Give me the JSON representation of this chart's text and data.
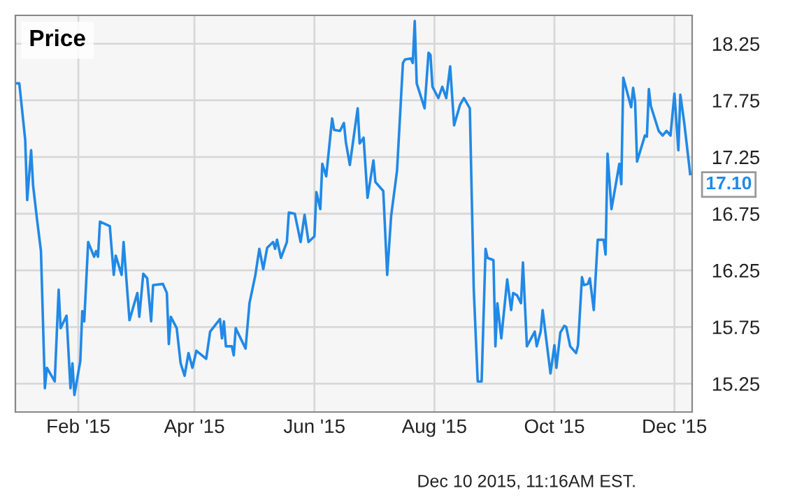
{
  "chart_data": {
    "type": "line",
    "title": "Price",
    "x": [
      "2015-01-01",
      "2015-01-02",
      "2015-01-05",
      "2015-01-06",
      "2015-01-08",
      "2015-01-09",
      "2015-01-11",
      "2015-01-13",
      "2015-01-15",
      "2015-01-16",
      "2015-01-20",
      "2015-01-22",
      "2015-01-23",
      "2015-01-26",
      "2015-01-28",
      "2015-01-29",
      "2015-01-30",
      "2015-02-02",
      "2015-02-03",
      "2015-02-04",
      "2015-02-06",
      "2015-02-09",
      "2015-02-10",
      "2015-02-11",
      "2015-02-12",
      "2015-02-17",
      "2015-02-19",
      "2015-02-20",
      "2015-02-23",
      "2015-02-24",
      "2015-02-27",
      "2015-03-03",
      "2015-03-04",
      "2015-03-06",
      "2015-03-08",
      "2015-03-10",
      "2015-03-11",
      "2015-03-16",
      "2015-03-18",
      "2015-03-19",
      "2015-03-20",
      "2015-03-23",
      "2015-03-25",
      "2015-03-27",
      "2015-03-29",
      "2015-03-31",
      "2015-04-02",
      "2015-04-07",
      "2015-04-09",
      "2015-04-14",
      "2015-04-15",
      "2015-04-16",
      "2015-04-17",
      "2015-04-20",
      "2015-04-21",
      "2015-04-22",
      "2015-04-27",
      "2015-04-29",
      "2015-05-02",
      "2015-05-04",
      "2015-05-06",
      "2015-05-08",
      "2015-05-11",
      "2015-05-12",
      "2015-05-13",
      "2015-05-15",
      "2015-05-18",
      "2015-05-19",
      "2015-05-22",
      "2015-05-25",
      "2015-05-27",
      "2015-05-29",
      "2015-06-01",
      "2015-06-02",
      "2015-06-04",
      "2015-06-05",
      "2015-06-07",
      "2015-06-10",
      "2015-06-11",
      "2015-06-14",
      "2015-06-16",
      "2015-06-17",
      "2015-06-19",
      "2015-06-23",
      "2015-06-24",
      "2015-06-26",
      "2015-06-28",
      "2015-07-01",
      "2015-07-02",
      "2015-07-06",
      "2015-07-08",
      "2015-07-10",
      "2015-07-13",
      "2015-07-16",
      "2015-07-17",
      "2015-07-20",
      "2015-07-21",
      "2015-07-22",
      "2015-07-23",
      "2015-07-27",
      "2015-07-29",
      "2015-07-30",
      "2015-07-31",
      "2015-08-03",
      "2015-08-05",
      "2015-08-07",
      "2015-08-09",
      "2015-08-11",
      "2015-08-14",
      "2015-08-16",
      "2015-08-19",
      "2015-08-21",
      "2015-08-23",
      "2015-08-25",
      "2015-08-27",
      "2015-08-28",
      "2015-08-31",
      "2015-09-01",
      "2015-09-02",
      "2015-09-04",
      "2015-09-07",
      "2015-09-09",
      "2015-09-10",
      "2015-09-12",
      "2015-09-14",
      "2015-09-15",
      "2015-09-17",
      "2015-09-21",
      "2015-09-22",
      "2015-09-24",
      "2015-09-25",
      "2015-09-29",
      "2015-10-01",
      "2015-10-02",
      "2015-10-04",
      "2015-10-06",
      "2015-10-07",
      "2015-10-09",
      "2015-10-12",
      "2015-10-13",
      "2015-10-15",
      "2015-10-16",
      "2015-10-18",
      "2015-10-19",
      "2015-10-21",
      "2015-10-23",
      "2015-10-26",
      "2015-10-27",
      "2015-10-28",
      "2015-10-30",
      "2015-11-03",
      "2015-11-04",
      "2015-11-05",
      "2015-11-09",
      "2015-11-10",
      "2015-11-11",
      "2015-11-12",
      "2015-11-16",
      "2015-11-17",
      "2015-11-18",
      "2015-11-19",
      "2015-11-23",
      "2015-11-25",
      "2015-11-27",
      "2015-11-29",
      "2015-12-01",
      "2015-12-03",
      "2015-12-04",
      "2015-12-06",
      "2015-12-09"
    ],
    "series": [
      {
        "color": "#2189e6",
        "values": [
          17.9,
          17.9,
          17.4,
          16.87,
          17.31,
          17.0,
          16.7,
          16.42,
          15.21,
          15.39,
          15.27,
          16.08,
          15.74,
          15.85,
          15.21,
          15.43,
          15.15,
          15.45,
          15.89,
          15.8,
          16.5,
          16.37,
          16.42,
          16.37,
          16.68,
          16.64,
          16.21,
          16.38,
          16.21,
          16.5,
          15.81,
          16.05,
          15.84,
          16.22,
          16.18,
          15.8,
          16.12,
          16.13,
          16.05,
          15.6,
          15.84,
          15.74,
          15.43,
          15.32,
          15.52,
          15.39,
          15.54,
          15.47,
          15.71,
          15.82,
          15.65,
          15.8,
          15.58,
          15.58,
          15.5,
          15.74,
          15.56,
          15.96,
          16.21,
          16.44,
          16.26,
          16.45,
          16.5,
          16.44,
          16.52,
          16.36,
          16.5,
          16.76,
          16.75,
          16.5,
          16.74,
          16.5,
          16.55,
          16.94,
          16.79,
          17.19,
          17.08,
          17.59,
          17.49,
          17.48,
          17.55,
          17.38,
          17.18,
          17.68,
          17.37,
          17.42,
          16.89,
          17.22,
          17.03,
          16.95,
          16.21,
          16.73,
          17.13,
          18.08,
          18.11,
          18.12,
          18.08,
          18.45,
          17.9,
          17.68,
          18.17,
          18.15,
          17.87,
          17.77,
          17.87,
          17.77,
          18.05,
          17.53,
          17.71,
          17.77,
          17.68,
          16.08,
          15.27,
          15.27,
          16.44,
          16.36,
          16.34,
          15.58,
          15.96,
          15.65,
          16.17,
          15.9,
          16.05,
          16.03,
          15.96,
          16.32,
          15.58,
          15.71,
          15.58,
          15.71,
          15.9,
          15.34,
          15.59,
          15.39,
          15.7,
          15.76,
          15.75,
          15.58,
          15.52,
          15.59,
          16.19,
          16.12,
          16.13,
          16.18,
          15.9,
          16.52,
          16.52,
          16.39,
          17.28,
          16.79,
          17.19,
          17.01,
          17.95,
          17.69,
          17.86,
          17.74,
          17.21,
          17.44,
          17.43,
          17.85,
          17.7,
          17.48,
          17.44,
          17.48,
          17.44,
          17.81,
          17.31,
          17.8,
          17.55,
          17.1
        ]
      }
    ],
    "xlim": [
      "2014-12-31",
      "2015-12-10"
    ],
    "xticks": [
      {
        "value": "2015-02-01",
        "label": "Feb '15"
      },
      {
        "value": "2015-04-01",
        "label": "Apr '15"
      },
      {
        "value": "2015-06-01",
        "label": "Jun '15"
      },
      {
        "value": "2015-08-01",
        "label": "Aug '15"
      },
      {
        "value": "2015-10-01",
        "label": "Oct '15"
      },
      {
        "value": "2015-12-01",
        "label": "Dec '15"
      }
    ],
    "ylim": [
      15.0,
      18.5
    ],
    "yticks": [
      {
        "value": 15.25,
        "label": "15.25"
      },
      {
        "value": 15.75,
        "label": "15.75"
      },
      {
        "value": 16.25,
        "label": "16.25"
      },
      {
        "value": 16.75,
        "label": "16.75"
      },
      {
        "value": 17.25,
        "label": "17.25"
      },
      {
        "value": 17.75,
        "label": "17.75"
      },
      {
        "value": 18.25,
        "label": "18.25"
      }
    ],
    "grid": true,
    "marker": "none",
    "line_style": "solid",
    "annotations": [
      {
        "text": "17.10",
        "x": "2015-12-09",
        "y": 17.1
      },
      "Dec 10 2015, 11:16AM EST."
    ]
  }
}
